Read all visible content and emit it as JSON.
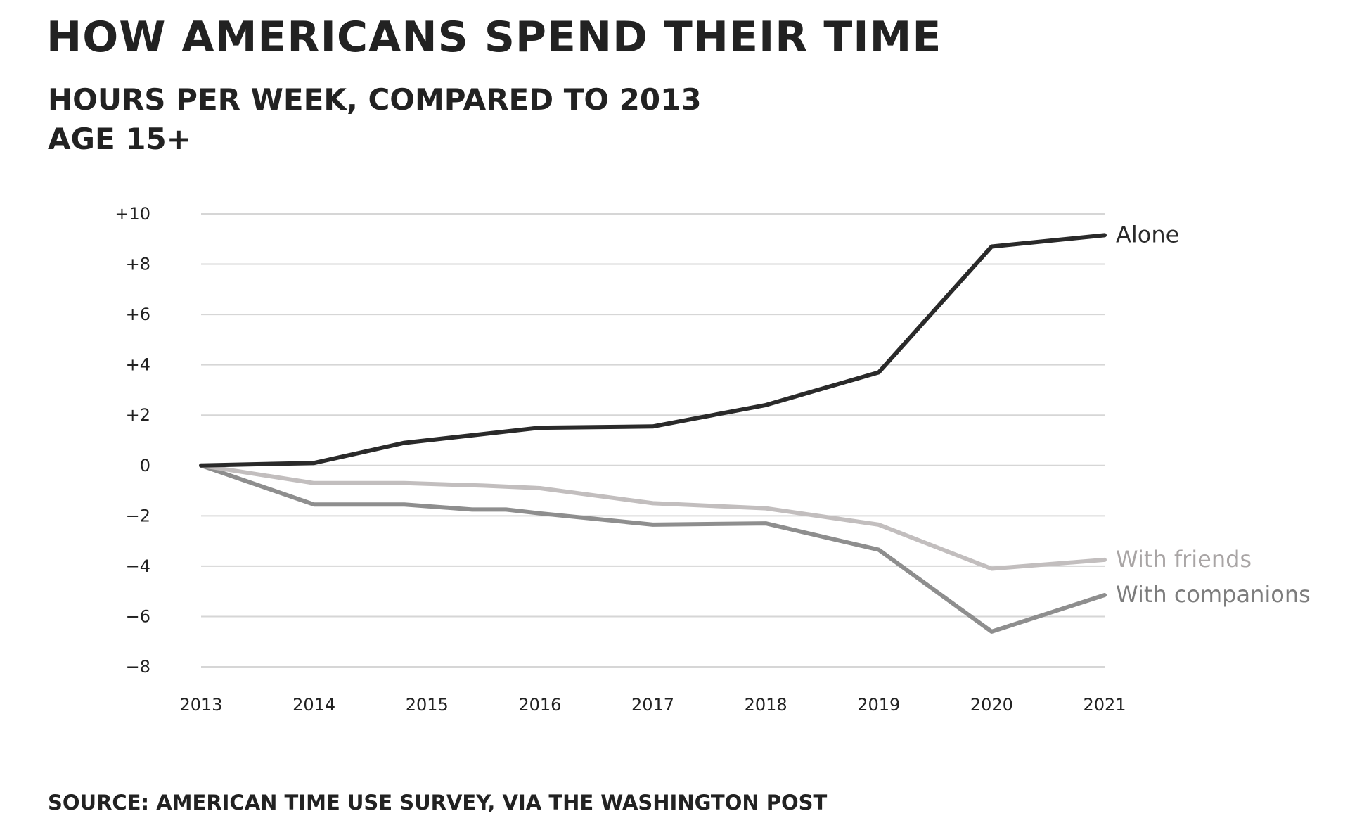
{
  "chart_data": {
    "type": "line",
    "title": "HOW AMERICANS SPEND THEIR TIME",
    "subtitle_lines": [
      "HOURS PER WEEK, COMPARED TO 2013",
      "AGE 15+"
    ],
    "source": "SOURCE: AMERICAN TIME USE SURVEY, VIA THE WASHINGTON POST",
    "x_labels": [
      "2013",
      "2014",
      "2015",
      "2016",
      "2017",
      "2018",
      "2019",
      "2020",
      "2021"
    ],
    "xlim": [
      2013,
      2021
    ],
    "ylim": [
      -8,
      10
    ],
    "y_ticks": [
      {
        "value": 10,
        "label": "+10"
      },
      {
        "value": 8,
        "label": "+8"
      },
      {
        "value": 6,
        "label": "+6"
      },
      {
        "value": 4,
        "label": "+4"
      },
      {
        "value": 2,
        "label": "+2"
      },
      {
        "value": 0,
        "label": "0"
      },
      {
        "value": -2,
        "label": "−2"
      },
      {
        "value": -4,
        "label": "−4"
      },
      {
        "value": -6,
        "label": "−6"
      },
      {
        "value": -8,
        "label": "−8"
      }
    ],
    "grid": "horizontal",
    "series": [
      {
        "name": "Alone",
        "color": "#2a2a2a",
        "points": [
          [
            2013,
            0
          ],
          [
            2014,
            0.1
          ],
          [
            2014.8,
            0.9
          ],
          [
            2016,
            1.5
          ],
          [
            2017,
            1.55
          ],
          [
            2018,
            2.4
          ],
          [
            2019,
            3.7
          ],
          [
            2020,
            8.7
          ],
          [
            2021,
            9.15
          ]
        ]
      },
      {
        "name": "With friends",
        "color": "#c2bebe",
        "points": [
          [
            2013,
            0
          ],
          [
            2014,
            -0.7
          ],
          [
            2014.8,
            -0.7
          ],
          [
            2015.5,
            -0.8
          ],
          [
            2016,
            -0.9
          ],
          [
            2017,
            -1.5
          ],
          [
            2018,
            -1.7
          ],
          [
            2019,
            -2.35
          ],
          [
            2020,
            -4.1
          ],
          [
            2021,
            -3.75
          ]
        ]
      },
      {
        "name": "With companions",
        "color": "#8e8e8e",
        "points": [
          [
            2013,
            0
          ],
          [
            2014,
            -1.55
          ],
          [
            2014.8,
            -1.55
          ],
          [
            2015.4,
            -1.75
          ],
          [
            2015.7,
            -1.75
          ],
          [
            2016,
            -1.9
          ],
          [
            2017,
            -2.35
          ],
          [
            2018,
            -2.3
          ],
          [
            2019,
            -3.35
          ],
          [
            2020,
            -6.6
          ],
          [
            2021,
            -5.15
          ]
        ]
      }
    ]
  }
}
